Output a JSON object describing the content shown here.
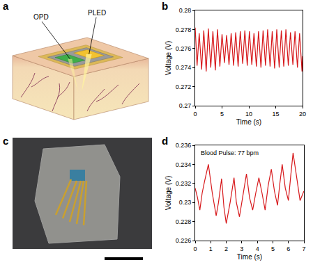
{
  "figure": {
    "a": {
      "panel": "a",
      "callouts": [
        "OPD",
        "PLED"
      ]
    },
    "c": {
      "panel": "c"
    }
  },
  "chart_data": [
    {
      "panel": "b",
      "type": "line",
      "color": "#d7191c",
      "x_label": "Time (s)",
      "y_label": "Voltage (V)",
      "x": [
        0,
        0.35,
        0.75,
        1.2,
        1.6,
        2.05,
        2.45,
        2.9,
        3.3,
        3.75,
        4.15,
        4.6,
        5.0,
        5.45,
        5.85,
        6.3,
        6.7,
        7.15,
        7.55,
        8.0,
        8.4,
        8.85,
        9.25,
        9.7,
        10.1,
        10.55,
        10.95,
        11.4,
        11.8,
        12.25,
        12.65,
        13.1,
        13.5,
        13.95,
        14.35,
        14.8,
        15.2,
        15.65,
        16.05,
        16.5,
        16.9,
        17.35,
        17.75,
        18.2,
        18.6,
        19.05,
        19.45,
        19.9,
        20
      ],
      "values": [
        0.2782,
        0.2742,
        0.2776,
        0.2738,
        0.2779,
        0.2736,
        0.2781,
        0.274,
        0.2778,
        0.2737,
        0.278,
        0.2741,
        0.2775,
        0.2745,
        0.2774,
        0.2743,
        0.2776,
        0.2742,
        0.2777,
        0.2741,
        0.2778,
        0.2744,
        0.2779,
        0.2742,
        0.2778,
        0.2743,
        0.2776,
        0.2741,
        0.2778,
        0.274,
        0.2779,
        0.2742,
        0.278,
        0.2741,
        0.2778,
        0.2739,
        0.278,
        0.274,
        0.2779,
        0.2741,
        0.278,
        0.2742,
        0.2777,
        0.2743,
        0.2778,
        0.274,
        0.2776,
        0.2736,
        0.2752
      ],
      "xlim": [
        0,
        20
      ],
      "xticks": [
        0,
        5,
        10,
        15,
        20
      ],
      "ylim": [
        0.27,
        0.28
      ],
      "yticks": [
        0.27,
        0.272,
        0.274,
        0.276,
        0.278,
        0.28
      ],
      "grid": false
    },
    {
      "panel": "d",
      "type": "line",
      "color": "#d7191c",
      "x_label": "Time (s)",
      "y_label": "Voltage (V)",
      "annotation": "Blood Pulse: 77 bpm",
      "x": [
        0,
        0.15,
        0.3,
        0.45,
        0.6,
        0.85,
        1.1,
        1.35,
        1.5,
        1.7,
        1.85,
        2.0,
        2.25,
        2.5,
        2.65,
        2.85,
        3.05,
        3.3,
        3.5,
        3.7,
        3.9,
        4.1,
        4.3,
        4.5,
        4.7,
        4.9,
        5.1,
        5.3,
        5.45,
        5.6,
        5.8,
        6.0,
        6.15,
        6.3,
        6.5,
        6.75,
        7.0
      ],
      "values": [
        0.2315,
        0.2305,
        0.2292,
        0.231,
        0.2322,
        0.234,
        0.231,
        0.2286,
        0.23,
        0.2325,
        0.2295,
        0.2278,
        0.23,
        0.2326,
        0.23,
        0.2285,
        0.2305,
        0.233,
        0.2305,
        0.2292,
        0.231,
        0.2326,
        0.231,
        0.2292,
        0.2318,
        0.2335,
        0.2312,
        0.2297,
        0.232,
        0.234,
        0.2315,
        0.2302,
        0.2328,
        0.2352,
        0.233,
        0.2302,
        0.2312
      ],
      "xlim": [
        0,
        7
      ],
      "xticks": [
        0,
        1,
        2,
        3,
        4,
        5,
        6,
        7
      ],
      "ylim": [
        0.226,
        0.236
      ],
      "yticks": [
        0.226,
        0.228,
        0.23,
        0.232,
        0.234,
        0.236
      ],
      "grid": false
    }
  ]
}
